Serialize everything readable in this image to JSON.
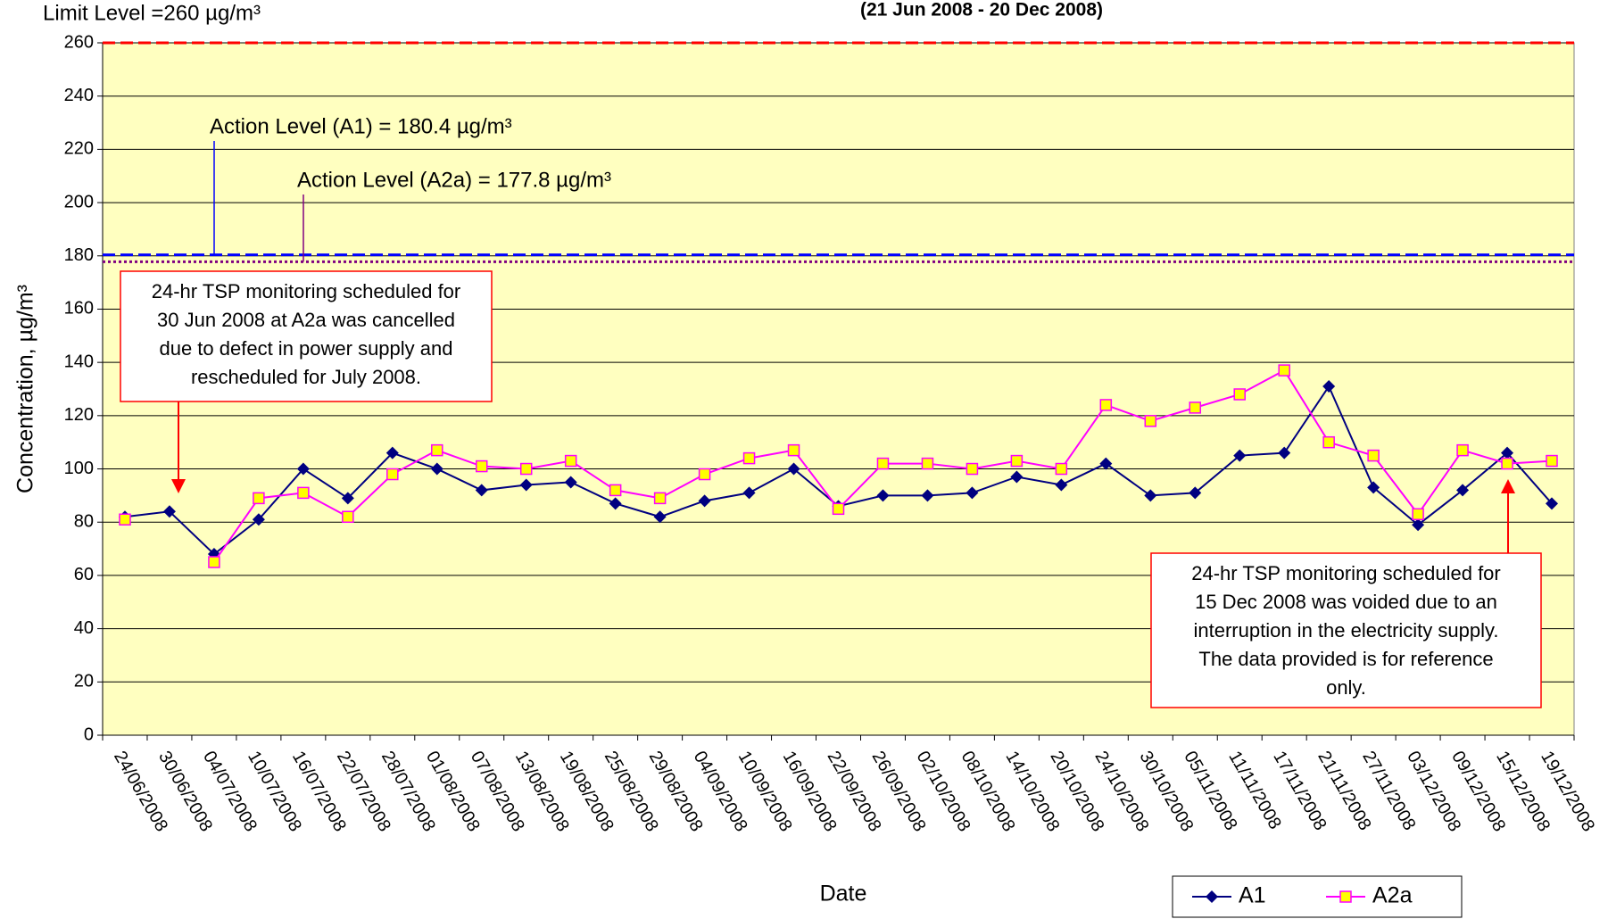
{
  "chart_data": {
    "type": "line",
    "title": "(21 Jun 2008 - 20 Dec 2008)",
    "x_label": "Date",
    "y_label": "Concentration, µg/m³",
    "categories": [
      "24/06/2008",
      "30/06/2008",
      "04/07/2008",
      "10/07/2008",
      "16/07/2008",
      "22/07/2008",
      "28/07/2008",
      "01/08/2008",
      "07/08/2008",
      "13/08/2008",
      "19/08/2008",
      "25/08/2008",
      "29/08/2008",
      "04/09/2008",
      "10/09/2008",
      "16/09/2008",
      "22/09/2008",
      "26/09/2008",
      "02/10/2008",
      "08/10/2008",
      "14/10/2008",
      "20/10/2008",
      "24/10/2008",
      "30/10/2008",
      "05/11/2008",
      "11/11/2008",
      "17/11/2008",
      "21/11/2008",
      "27/11/2008",
      "03/12/2008",
      "09/12/2008",
      "15/12/2008",
      "19/12/2008"
    ],
    "series": [
      {
        "name": "A1",
        "color": "#000080",
        "marker": "diamond",
        "values": [
          82,
          84,
          68,
          81,
          100,
          89,
          106,
          100,
          92,
          94,
          95,
          87,
          82,
          88,
          91,
          100,
          86,
          90,
          90,
          91,
          97,
          94,
          102,
          90,
          91,
          105,
          106,
          131,
          93,
          79,
          92,
          106,
          87
        ]
      },
      {
        "name": "A2a",
        "color": "#ff00ff",
        "marker": "square",
        "marker_fill": "#ffff00",
        "values": [
          81,
          null,
          65,
          89,
          91,
          82,
          98,
          107,
          101,
          100,
          103,
          92,
          89,
          98,
          104,
          107,
          85,
          102,
          102,
          100,
          103,
          100,
          124,
          118,
          123,
          128,
          137,
          110,
          105,
          83,
          107,
          102,
          103
        ]
      }
    ],
    "reference_lines": [
      {
        "label": "Limit Level =260 µg/m³",
        "value": 260,
        "color": "#ff0000",
        "style": "dashed"
      },
      {
        "label": "Action Level (A1) = 180.4 µg/m³",
        "value": 180.4,
        "color": "#0000ff",
        "style": "dashed"
      },
      {
        "label": "Action Level (A2a) = 177.8 µg/m³",
        "value": 177.8,
        "color": "#800080",
        "style": "dotted"
      }
    ],
    "annotations": [
      {
        "lines": [
          "24-hr TSP monitoring scheduled for",
          "30 Jun 2008 at A2a  was cancelled",
          "due to defect in power supply and",
          "rescheduled for July 2008."
        ]
      },
      {
        "lines": [
          "24-hr TSP monitoring scheduled for",
          "15 Dec 2008 was voided due to an",
          "interruption in the electricity supply.",
          "The data provided is for reference",
          "only."
        ]
      }
    ],
    "ylim": [
      0,
      260
    ],
    "yticks": [
      0,
      20,
      40,
      60,
      80,
      100,
      120,
      140,
      160,
      180,
      200,
      220,
      240,
      260
    ],
    "grid": true,
    "plot_background": "#ffffc0",
    "legend": "bottom-right"
  }
}
